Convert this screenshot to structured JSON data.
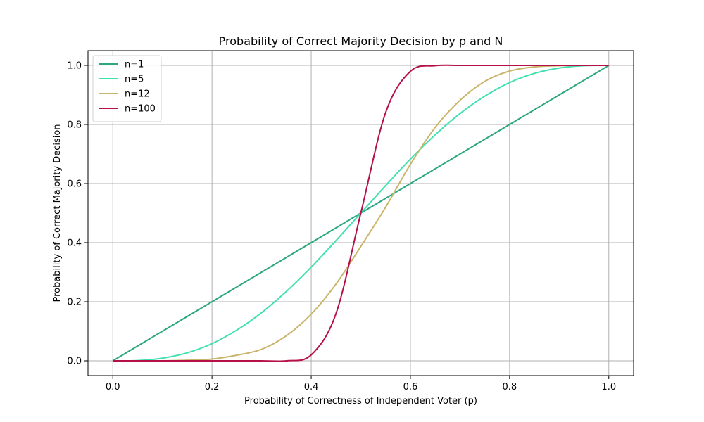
{
  "chart_data": {
    "type": "line",
    "title": "Probability of Correct Majority Decision by p and N",
    "xlabel": "Probability of Correctness of Independent Voter (p)",
    "ylabel": "Probability of Correct Majority Decision",
    "xlim": [
      -0.05,
      1.05
    ],
    "ylim": [
      -0.05,
      1.05
    ],
    "xticks": [
      "0.0",
      "0.2",
      "0.4",
      "0.6",
      "0.8",
      "1.0"
    ],
    "yticks": [
      "0.0",
      "0.2",
      "0.4",
      "0.6",
      "0.8",
      "1.0"
    ],
    "grid": true,
    "legend_position": "top-left",
    "x": [
      0.0,
      0.05,
      0.1,
      0.15,
      0.2,
      0.25,
      0.3,
      0.35,
      0.4,
      0.45,
      0.5,
      0.55,
      0.6,
      0.65,
      0.7,
      0.75,
      0.8,
      0.85,
      0.9,
      0.95,
      1.0
    ],
    "series": [
      {
        "name": "n=1",
        "color": "#2ca77f",
        "values": [
          0.0,
          0.05,
          0.1,
          0.15,
          0.2,
          0.25,
          0.3,
          0.35,
          0.4,
          0.45,
          0.5,
          0.55,
          0.6,
          0.65,
          0.7,
          0.75,
          0.8,
          0.85,
          0.9,
          0.95,
          1.0
        ]
      },
      {
        "name": "n=5",
        "color": "#40e0b0",
        "values": [
          0.0,
          0.001,
          0.009,
          0.027,
          0.058,
          0.104,
          0.163,
          0.235,
          0.317,
          0.407,
          0.5,
          0.593,
          0.683,
          0.765,
          0.837,
          0.896,
          0.942,
          0.973,
          0.991,
          0.999,
          1.0
        ]
      },
      {
        "name": "n=12",
        "color": "#c9b46a",
        "values": [
          0.0,
          0.0,
          0.0,
          0.002,
          0.006,
          0.019,
          0.039,
          0.085,
          0.158,
          0.26,
          0.387,
          0.52,
          0.665,
          0.79,
          0.882,
          0.946,
          0.981,
          0.995,
          0.999,
          1.0,
          1.0
        ]
      },
      {
        "name": "n=100",
        "color": "#b5104a",
        "values": [
          0.0,
          0.0,
          0.0,
          0.0,
          0.0,
          0.0,
          0.0,
          0.0,
          0.02,
          0.16,
          0.5,
          0.84,
          0.98,
          0.999,
          1.0,
          1.0,
          1.0,
          1.0,
          1.0,
          1.0,
          1.0
        ]
      }
    ]
  }
}
